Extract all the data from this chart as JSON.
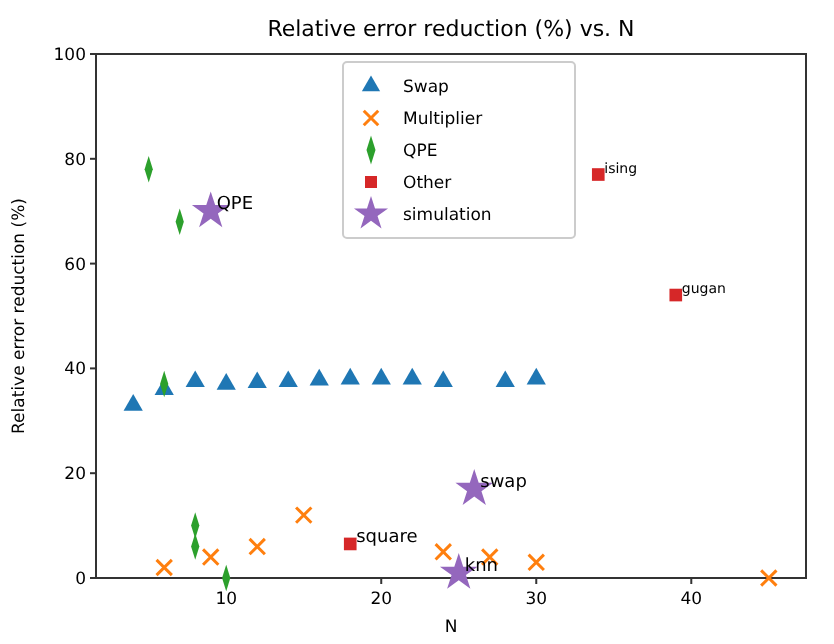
{
  "chart_data": {
    "type": "scatter",
    "title": "Relative error reduction (%) vs. N",
    "xlabel": "N",
    "ylabel": "Relative error reduction (%)",
    "xlim": [
      1.6,
      47.4
    ],
    "ylim": [
      0,
      100
    ],
    "xticks": [
      10,
      20,
      30,
      40
    ],
    "yticks": [
      0,
      20,
      40,
      60,
      80,
      100
    ],
    "grid": false,
    "legend": "top",
    "series": [
      {
        "name": "Swap",
        "color": "#1f77b4",
        "marker": "triangle",
        "x": [
          4,
          6,
          8,
          10,
          12,
          14,
          16,
          18,
          20,
          22,
          24,
          28,
          30
        ],
        "values": [
          33,
          36,
          37.5,
          37,
          37.3,
          37.5,
          37.8,
          38,
          38,
          38,
          37.5,
          37.5,
          38
        ]
      },
      {
        "name": "Multiplier",
        "color": "#ff7f0e",
        "marker": "cross",
        "x": [
          6,
          9,
          12,
          15,
          24,
          27,
          30,
          45
        ],
        "values": [
          2,
          4,
          6,
          12,
          5,
          4,
          3,
          0
        ]
      },
      {
        "name": "QPE",
        "color": "#2ca02c",
        "marker": "diamond",
        "x": [
          5,
          6,
          7,
          8,
          8,
          10
        ],
        "values": [
          78,
          37,
          68,
          10,
          6,
          0
        ]
      },
      {
        "name": "Other",
        "color": "#d62728",
        "marker": "square",
        "x": [
          18,
          34,
          39
        ],
        "values": [
          6.5,
          77,
          54
        ]
      },
      {
        "name": "simulation",
        "color": "#9467bd",
        "marker": "star",
        "x": [
          9,
          26,
          25
        ],
        "values": [
          70,
          17,
          1
        ]
      }
    ],
    "annotations": [
      {
        "text": "QPE",
        "x": 9,
        "y": 70
      },
      {
        "text": "ising",
        "x": 34,
        "y": 77
      },
      {
        "text": "gugan",
        "x": 39,
        "y": 54
      },
      {
        "text": "swap",
        "x": 26,
        "y": 17
      },
      {
        "text": "square",
        "x": 18,
        "y": 6.5
      },
      {
        "text": "knn",
        "x": 25,
        "y": 1
      }
    ]
  }
}
